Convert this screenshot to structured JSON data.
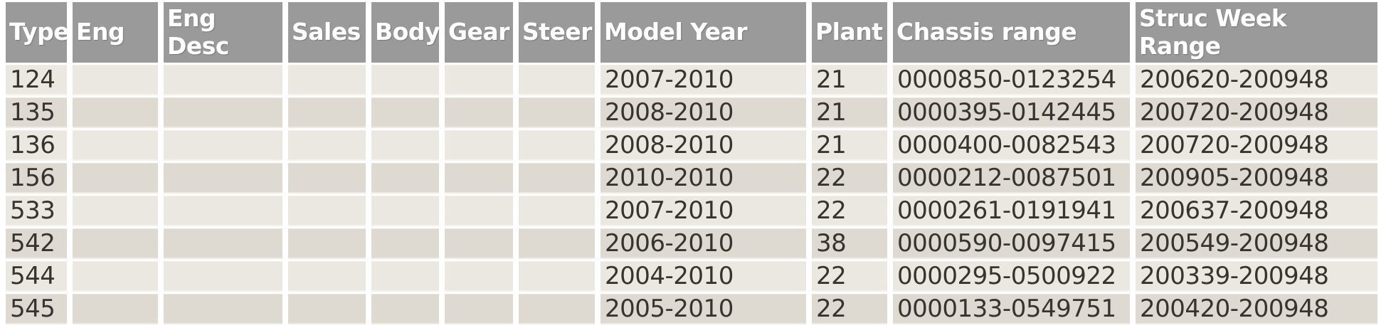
{
  "colors": {
    "header_bg": "#9a9a9a",
    "header_text": "#ffffff",
    "row_light": "#ebe8e1",
    "row_dark": "#dedad1",
    "cell_text": "#37342d",
    "page_bg": "#ffffff"
  },
  "table": {
    "columns": [
      {
        "id": "type",
        "label": "Type"
      },
      {
        "id": "eng",
        "label": "Eng"
      },
      {
        "id": "eng-desc",
        "label": "Eng\nDesc"
      },
      {
        "id": "sales",
        "label": "Sales"
      },
      {
        "id": "body",
        "label": "Body"
      },
      {
        "id": "gear",
        "label": "Gear"
      },
      {
        "id": "steer",
        "label": "Steer"
      },
      {
        "id": "model-year",
        "label": "Model Year"
      },
      {
        "id": "plant",
        "label": "Plant"
      },
      {
        "id": "chassis-range",
        "label": "Chassis range"
      },
      {
        "id": "struc-week-range",
        "label": "Struc Week\nRange"
      }
    ],
    "rows": [
      [
        "124",
        "",
        "",
        "",
        "",
        "",
        "",
        "2007-2010",
        "21",
        "0000850-0123254",
        "200620-200948"
      ],
      [
        "135",
        "",
        "",
        "",
        "",
        "",
        "",
        "2008-2010",
        "21",
        "0000395-0142445",
        "200720-200948"
      ],
      [
        "136",
        "",
        "",
        "",
        "",
        "",
        "",
        "2008-2010",
        "21",
        "0000400-0082543",
        "200720-200948"
      ],
      [
        "156",
        "",
        "",
        "",
        "",
        "",
        "",
        "2010-2010",
        "22",
        "0000212-0087501",
        "200905-200948"
      ],
      [
        "533",
        "",
        "",
        "",
        "",
        "",
        "",
        "2007-2010",
        "22",
        "0000261-0191941",
        "200637-200948"
      ],
      [
        "542",
        "",
        "",
        "",
        "",
        "",
        "",
        "2006-2010",
        "38",
        "0000590-0097415",
        "200549-200948"
      ],
      [
        "544",
        "",
        "",
        "",
        "",
        "",
        "",
        "2004-2010",
        "22",
        "0000295-0500922",
        "200339-200948"
      ],
      [
        "545",
        "",
        "",
        "",
        "",
        "",
        "",
        "2005-2010",
        "22",
        "0000133-0549751",
        "200420-200948"
      ]
    ]
  }
}
